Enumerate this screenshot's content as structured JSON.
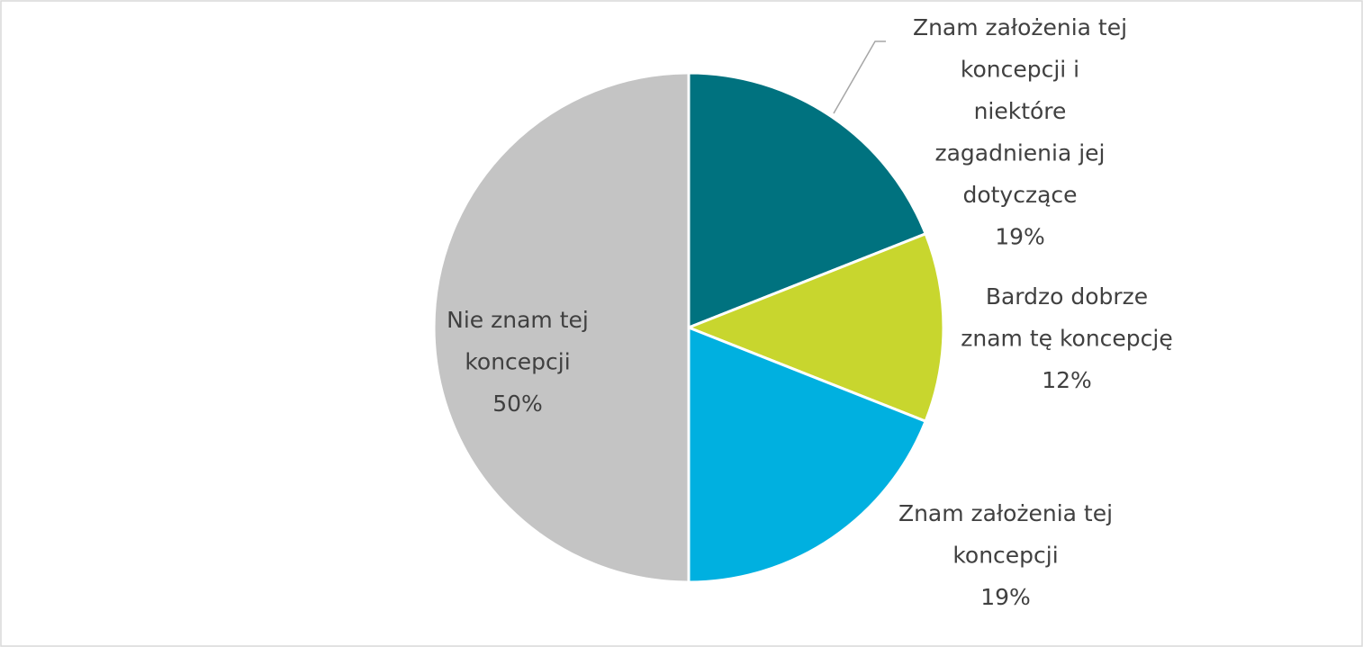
{
  "chart_data": {
    "type": "pie",
    "categories": [
      "Znam założenia tej\nkoncepcji i\nniektóre\nzagadnienia jej\ndotyczące",
      "Bardzo dobrze\nznam tę koncepcję",
      "Znam założenia tej\nkoncepcji",
      "Nie znam tej\nkoncepcji"
    ],
    "values": [
      19,
      12,
      19,
      50
    ],
    "value_labels": [
      "19%",
      "12%",
      "19%",
      "50%"
    ],
    "colors": [
      "#00727f",
      "#c8d62e",
      "#00b0e0",
      "#c4c4c4"
    ]
  }
}
